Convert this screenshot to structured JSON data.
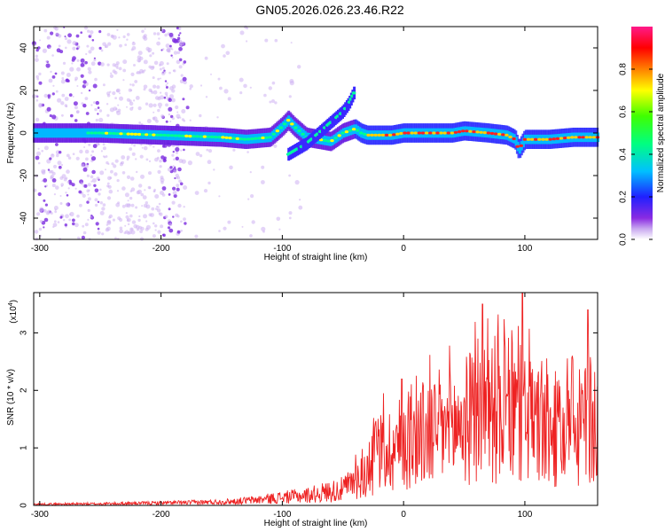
{
  "title": "GN05.2026.026.23.46.R22",
  "chart_data": [
    {
      "type": "heatmap",
      "title": "GN05.2026.026.23.46.R22",
      "xlabel": "Height of straight line (km)",
      "ylabel": "Frequency (Hz)",
      "xlim": [
        -305,
        160
      ],
      "ylim": [
        -50,
        50
      ],
      "xticks": [
        -300,
        -200,
        -100,
        0,
        100
      ],
      "xtick_labels": [
        "-300",
        "-200",
        "-100",
        "0",
        "100"
      ],
      "yticks": [
        -40,
        -20,
        0,
        20,
        40
      ],
      "ytick_labels": [
        "-40",
        "-20",
        "0",
        "20",
        "40"
      ],
      "colorbar": {
        "label": "Normalized spectral amplitude",
        "range": [
          0.0,
          1.0
        ],
        "ticks": [
          0.0,
          0.2,
          0.4,
          0.6,
          0.8
        ],
        "tick_labels": [
          "0.0",
          "0.2",
          "0.4",
          "0.6",
          "0.8"
        ],
        "colormap": [
          "#ffffff",
          "#c8a8f0",
          "#8a2be2",
          "#2020ff",
          "#00c0ff",
          "#00ff80",
          "#40ff00",
          "#ffff00",
          "#ff8000",
          "#ff0000",
          "#ff1a8a"
        ]
      },
      "ridge_frequency": {
        "x": [
          -300,
          -250,
          -200,
          -150,
          -130,
          -110,
          -100,
          -95,
          -90,
          -80,
          -70,
          -60,
          -50,
          -45,
          -40,
          -35,
          -30,
          -20,
          -10,
          0,
          20,
          40,
          50,
          70,
          85,
          92,
          95,
          100,
          120,
          140,
          160
        ],
        "y": [
          0,
          0,
          -1,
          -2,
          -3,
          -2,
          3,
          6,
          3,
          -2,
          -3,
          -4,
          0,
          1,
          2,
          0,
          -1,
          -1,
          -1,
          0,
          0,
          0,
          1,
          0,
          -1,
          -3,
          -8,
          -3,
          -3,
          -2,
          -2
        ]
      },
      "secondary_branch": {
        "x": [
          -95,
          -80,
          -70,
          -60,
          -50,
          -45,
          -40
        ],
        "y": [
          -10,
          -5,
          0,
          5,
          10,
          14,
          20
        ]
      }
    },
    {
      "type": "line",
      "xlabel": "Height of straight line (km)",
      "ylabel": "SNR (10 * v/v)",
      "yscale_label": "(x10",
      "yscale_exponent": "4",
      "xlim": [
        -305,
        160
      ],
      "ylim": [
        0,
        3.7
      ],
      "xticks": [
        -300,
        -200,
        -100,
        0,
        100
      ],
      "xtick_labels": [
        "-300",
        "-200",
        "-100",
        "0",
        "100"
      ],
      "yticks": [
        0,
        1,
        2,
        3
      ],
      "ytick_labels": [
        "0",
        "1",
        "2",
        "3"
      ],
      "color": "#ee2222",
      "envelope": {
        "x": [
          -305,
          -250,
          -200,
          -160,
          -140,
          -120,
          -100,
          -80,
          -60,
          -50,
          -40,
          -30,
          -25,
          -20,
          -10,
          0,
          10,
          20,
          30,
          40,
          50,
          60,
          70,
          80,
          90,
          100,
          110,
          120,
          130,
          140,
          150,
          160
        ],
        "y": [
          0.03,
          0.04,
          0.06,
          0.08,
          0.1,
          0.14,
          0.2,
          0.25,
          0.35,
          0.4,
          0.6,
          0.8,
          1.0,
          1.3,
          1.4,
          1.6,
          1.7,
          1.8,
          1.9,
          1.9,
          2.1,
          2.2,
          2.4,
          2.4,
          2.3,
          2.2,
          2.0,
          1.8,
          1.7,
          1.8,
          2.0,
          2.2
        ]
      },
      "peaks": {
        "x": [
          65,
          98,
          152
        ],
        "y": [
          3.5,
          3.7,
          3.4
        ]
      }
    }
  ]
}
